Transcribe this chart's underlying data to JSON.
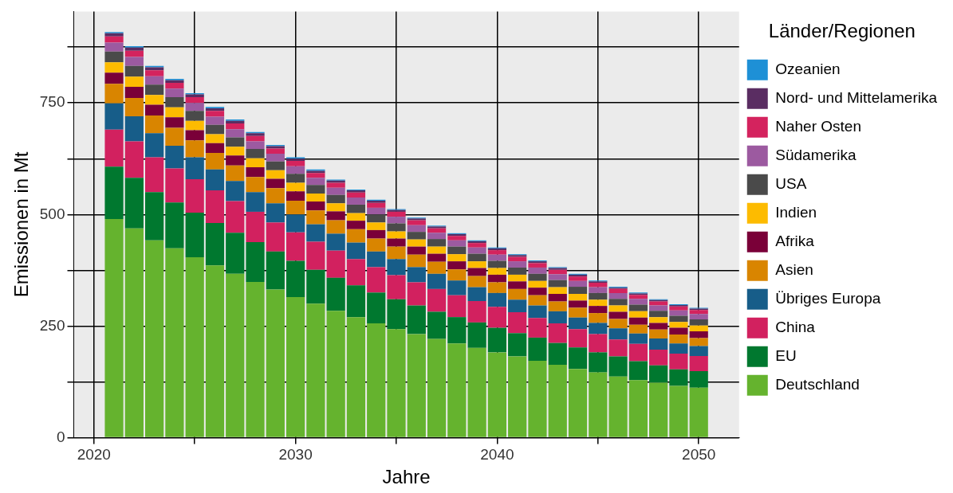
{
  "chart_data": {
    "type": "bar",
    "stacked": true,
    "xlabel": "Jahre",
    "ylabel": "Emissionen in Mt",
    "legend_title": "Länder/Regionen",
    "legend": "right",
    "grid": true,
    "x": [
      2021,
      2022,
      2023,
      2024,
      2025,
      2026,
      2027,
      2028,
      2029,
      2030,
      2031,
      2032,
      2033,
      2034,
      2035,
      2036,
      2037,
      2038,
      2039,
      2040,
      2041,
      2042,
      2043,
      2044,
      2045,
      2046,
      2047,
      2048,
      2049,
      2050
    ],
    "xlim": [
      2019,
      2052
    ],
    "xticks": [
      2020,
      {
        "value": 2025,
        "label": null
      },
      2030,
      {
        "value": 2035,
        "label": null
      },
      2040,
      {
        "value": 2045,
        "label": null
      },
      2050
    ],
    "ylim": [
      0,
      955
    ],
    "yticks": [
      0,
      {
        "value": 125,
        "label": null
      },
      250,
      {
        "value": 375,
        "label": null
      },
      500,
      {
        "value": 625,
        "label": null
      },
      750,
      {
        "value": 875,
        "label": null
      }
    ],
    "series": [
      {
        "name": "Deutschland",
        "color": "#65b32e",
        "values": [
          490,
          469,
          442,
          424,
          404,
          386,
          367,
          349,
          332,
          315,
          300,
          284,
          270,
          256,
          243,
          232,
          221,
          211,
          201,
          191,
          182,
          172,
          163,
          154,
          146,
          137,
          129,
          123,
          116,
          112
        ]
      },
      {
        "name": "EU",
        "color": "#00782f",
        "values": [
          117,
          113,
          108,
          103,
          100,
          95,
          92,
          89,
          85,
          81,
          76,
          74,
          71,
          69,
          67,
          64,
          61,
          59,
          57,
          55,
          52,
          52,
          49,
          48,
          45,
          45,
          42,
          39,
          37,
          37
        ]
      },
      {
        "name": "China",
        "color": "#d2215f",
        "values": [
          83,
          82,
          78,
          76,
          75,
          73,
          71,
          68,
          65,
          64,
          63,
          61,
          59,
          57,
          54,
          52,
          51,
          49,
          48,
          47,
          47,
          44,
          44,
          41,
          41,
          38,
          39,
          35,
          35,
          34
        ]
      },
      {
        "name": "Übriges Europa",
        "color": "#175d89",
        "values": [
          59,
          56,
          54,
          51,
          49,
          47,
          45,
          44,
          43,
          40,
          39,
          38,
          37,
          35,
          36,
          34,
          34,
          33,
          31,
          31,
          28,
          28,
          27,
          26,
          25,
          25,
          23,
          25,
          23,
          22
        ]
      },
      {
        "name": "Asien",
        "color": "#d98500",
        "values": [
          44,
          41,
          40,
          40,
          38,
          37,
          35,
          34,
          34,
          31,
          31,
          30,
          30,
          29,
          28,
          28,
          27,
          25,
          25,
          24,
          24,
          23,
          22,
          22,
          22,
          21,
          20,
          20,
          20,
          18
        ]
      },
      {
        "name": "Afrika",
        "color": "#7a0038",
        "values": [
          25,
          25,
          24,
          24,
          23,
          22,
          22,
          22,
          21,
          21,
          20,
          20,
          19,
          19,
          18,
          18,
          18,
          18,
          18,
          17,
          17,
          17,
          17,
          16,
          16,
          16,
          16,
          15,
          15,
          15
        ]
      },
      {
        "name": "Indien",
        "color": "#fdbb00",
        "values": [
          23,
          23,
          22,
          22,
          21,
          20,
          20,
          20,
          19,
          19,
          18,
          18,
          17,
          17,
          16,
          16,
          16,
          16,
          15,
          15,
          15,
          15,
          15,
          15,
          14,
          14,
          14,
          13,
          13,
          13
        ]
      },
      {
        "name": "USA",
        "color": "#4a4a4a",
        "values": [
          24,
          24,
          23,
          23,
          22,
          21,
          21,
          21,
          20,
          20,
          19,
          19,
          19,
          18,
          18,
          17,
          17,
          17,
          17,
          16,
          16,
          16,
          16,
          16,
          15,
          15,
          15,
          14,
          14,
          14
        ]
      },
      {
        "name": "Südamerika",
        "color": "#9c5aa0",
        "values": [
          20,
          20,
          19,
          19,
          18,
          18,
          18,
          17,
          17,
          17,
          16,
          16,
          16,
          15,
          15,
          15,
          14,
          14,
          14,
          14,
          14,
          14,
          13,
          13,
          13,
          13,
          13,
          12,
          12,
          12
        ]
      },
      {
        "name": "Naher Osten",
        "color": "#d4235e",
        "values": [
          14,
          14,
          13,
          13,
          13,
          13,
          13,
          12,
          12,
          12,
          11,
          11,
          11,
          11,
          11,
          11,
          10,
          10,
          10,
          10,
          10,
          10,
          10,
          10,
          10,
          9,
          9,
          9,
          9,
          9
        ]
      },
      {
        "name": "Nord- und Mittelamerika",
        "color": "#5a2d62",
        "values": [
          7,
          7,
          7,
          6,
          6,
          6,
          6,
          6,
          5,
          5,
          5,
          5,
          5,
          5,
          4,
          4,
          4,
          4,
          4,
          4,
          4,
          4,
          4,
          4,
          3,
          3,
          3,
          3,
          3,
          3
        ]
      },
      {
        "name": "Ozeanien",
        "color": "#1e90d6",
        "values": [
          3,
          3,
          3,
          3,
          3,
          3,
          3,
          3,
          3,
          3,
          3,
          2,
          2,
          2,
          2,
          2,
          2,
          2,
          2,
          2,
          2,
          2,
          2,
          2,
          2,
          2,
          2,
          2,
          2,
          2
        ]
      }
    ]
  }
}
